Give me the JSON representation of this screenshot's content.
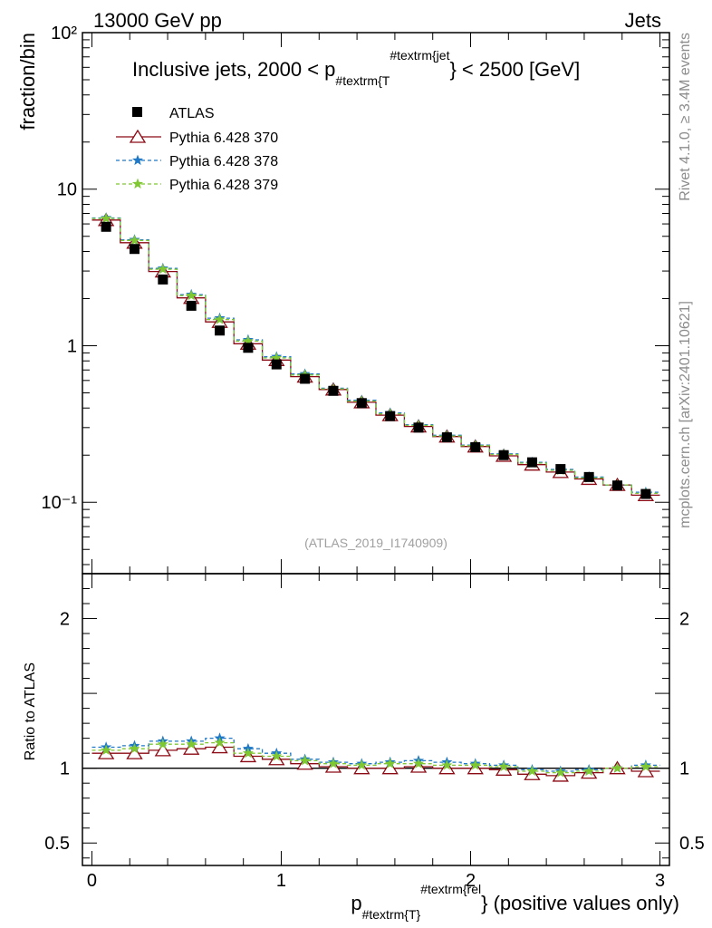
{
  "header": {
    "left": "13000 GeV pp",
    "right": "Jets"
  },
  "side_labels": {
    "rivet": "Rivet 4.1.0, ≥ 3.4M events",
    "mcplots": "mcplots.cern.ch [arXiv:2401.10621]"
  },
  "chart_data": [
    {
      "type": "scatter",
      "title": {
        "main": "Inclusive jets, 2000 < p",
        "sub": "#textrm{T",
        "sup": "#textrm{jet",
        "tail": "} < 2500 [GeV]"
      },
      "ylabel": "fraction/bin",
      "yscale": "log",
      "ylim": [
        0.035,
        100
      ],
      "xlim": [
        -0.05,
        3.05
      ],
      "ytick_labels": [
        "10⁻¹",
        "1",
        "10",
        "10²"
      ],
      "ytick_values": [
        0.1,
        1,
        10,
        100
      ],
      "watermark": "(ATLAS_2019_I1740909)",
      "x": [
        0.075,
        0.225,
        0.375,
        0.525,
        0.675,
        0.825,
        0.975,
        1.125,
        1.275,
        1.425,
        1.575,
        1.725,
        1.875,
        2.025,
        2.175,
        2.325,
        2.475,
        2.625,
        2.775,
        2.925
      ],
      "series": [
        {
          "name": "ATLAS",
          "marker": "square",
          "color": "#000000",
          "values": [
            5.75,
            4.15,
            2.65,
            1.8,
            1.25,
            0.97,
            0.76,
            0.615,
            0.515,
            0.43,
            0.355,
            0.3,
            0.26,
            0.225,
            0.2,
            0.18,
            0.163,
            0.145,
            0.128,
            0.113
          ]
        },
        {
          "name": "Pythia 6.428 370",
          "marker": "triangle",
          "color": "#8b0a14",
          "dash": "",
          "values": [
            6.35,
            4.55,
            2.98,
            2.02,
            1.42,
            1.03,
            0.81,
            0.635,
            0.525,
            0.435,
            0.36,
            0.305,
            0.263,
            0.227,
            0.198,
            0.174,
            0.156,
            0.141,
            0.129,
            0.111
          ]
        },
        {
          "name": "Pythia 6.428 378",
          "marker": "star",
          "color": "#1f78c8",
          "dash": "4,3",
          "values": [
            6.55,
            4.75,
            3.12,
            2.12,
            1.5,
            1.09,
            0.85,
            0.66,
            0.535,
            0.448,
            0.372,
            0.313,
            0.268,
            0.232,
            0.204,
            0.18,
            0.162,
            0.145,
            0.129,
            0.116
          ]
        },
        {
          "name": "Pythia 6.428 379",
          "marker": "star",
          "color": "#7fc832",
          "dash": "4,3",
          "values": [
            6.5,
            4.7,
            3.08,
            2.09,
            1.47,
            1.07,
            0.835,
            0.65,
            0.53,
            0.443,
            0.367,
            0.31,
            0.265,
            0.23,
            0.202,
            0.178,
            0.16,
            0.143,
            0.129,
            0.114
          ]
        }
      ]
    },
    {
      "type": "scatter",
      "ylabel": "Ratio to ATLAS",
      "ylim": [
        0.35,
        2.3
      ],
      "xlim": [
        -0.05,
        3.05
      ],
      "ytick_labels": [
        "0.5",
        "1",
        "2"
      ],
      "ytick_values": [
        0.5,
        1,
        2
      ],
      "xlabel": {
        "main": "p",
        "sub": "#textrm{T}",
        "sup": "#textrm{rel",
        "tail": "} (positive values only)"
      },
      "xtick_labels": [
        "0",
        "1",
        "2",
        "3"
      ],
      "xtick_values": [
        0,
        1,
        2,
        3
      ],
      "series": [
        {
          "name": "Pythia 6.428 370",
          "color": "#8b0a14",
          "marker": "triangle",
          "dash": "",
          "values": [
            1.1,
            1.1,
            1.12,
            1.13,
            1.14,
            1.08,
            1.06,
            1.03,
            1.01,
            1.0,
            1.0,
            1.01,
            1.0,
            1.0,
            0.99,
            0.96,
            0.95,
            0.97,
            1.0,
            0.98
          ]
        },
        {
          "name": "Pythia 6.428 378",
          "color": "#1f78c8",
          "marker": "star",
          "dash": "4,3",
          "values": [
            1.14,
            1.15,
            1.18,
            1.18,
            1.2,
            1.13,
            1.1,
            1.06,
            1.04,
            1.03,
            1.04,
            1.05,
            1.04,
            1.03,
            1.02,
            0.99,
            0.98,
            0.99,
            1.0,
            1.02
          ]
        },
        {
          "name": "Pythia 6.428 379",
          "color": "#7fc832",
          "marker": "star",
          "dash": "4,3",
          "values": [
            1.12,
            1.13,
            1.16,
            1.16,
            1.17,
            1.1,
            1.08,
            1.05,
            1.03,
            1.02,
            1.03,
            1.03,
            1.02,
            1.02,
            1.01,
            0.98,
            0.97,
            0.98,
            1.0,
            1.01
          ]
        }
      ]
    }
  ]
}
